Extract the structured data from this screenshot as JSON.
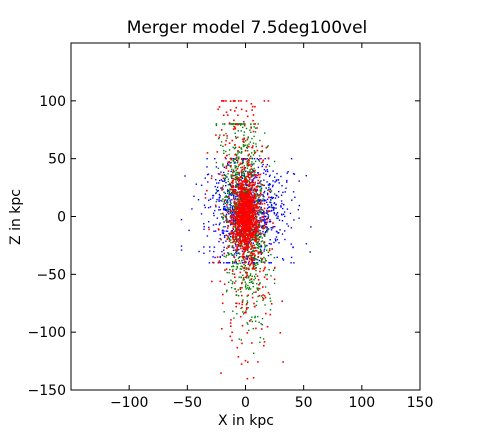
{
  "chart_data": {
    "type": "scatter",
    "title": "Merger model 7.5deg100vel",
    "xlabel": "X in kpc",
    "ylabel": "Z in kpc",
    "xlim": [
      -150,
      150
    ],
    "ylim": [
      -150,
      150
    ],
    "xticks": [
      -100,
      -50,
      0,
      50,
      100,
      150
    ],
    "yticks": [
      -150,
      -100,
      -50,
      0,
      50,
      100
    ],
    "grid": false,
    "series": [
      {
        "color": "#0000ff",
        "points_count": 900,
        "distribution": {
          "center": [
            2,
            5
          ],
          "spread": [
            18,
            22
          ],
          "extent_x": [
            -55,
            65
          ],
          "extent_z": [
            -40,
            50
          ]
        }
      },
      {
        "color": "#008000",
        "points_count": 1100,
        "distribution": {
          "center": [
            0,
            0
          ],
          "spread": [
            9,
            40
          ],
          "extent_x": [
            -25,
            25
          ],
          "extent_z": [
            -145,
            80
          ]
        }
      },
      {
        "color": "#ff0000",
        "points_count": 1400,
        "distribution": {
          "center": [
            -1,
            0
          ],
          "spread": [
            6,
            22
          ],
          "extent_x": [
            -60,
            65
          ],
          "extent_z": [
            -150,
            100
          ]
        }
      }
    ]
  }
}
